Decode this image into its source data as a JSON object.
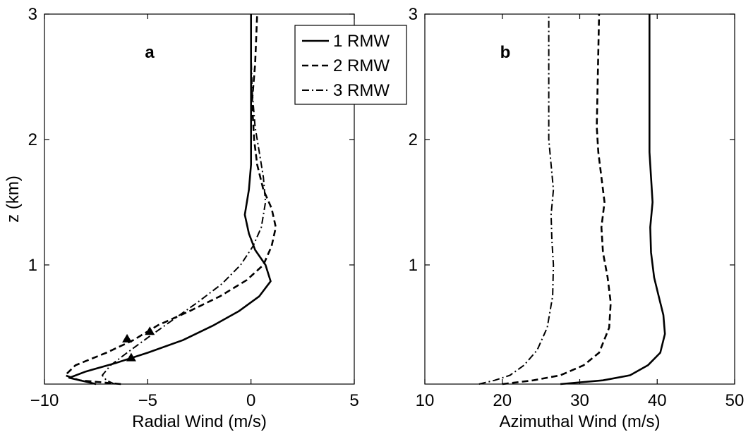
{
  "chart_data": [
    {
      "type": "line",
      "panel_label": "a",
      "xlabel": "Radial Wind (m/s)",
      "ylabel": "z (km)",
      "xlim": [
        -10,
        5
      ],
      "ylim": [
        0.05,
        3
      ],
      "xticks": [
        -10,
        -5,
        0,
        5
      ],
      "yticks": [
        1,
        2,
        3
      ],
      "legend": {
        "placement": "top-right",
        "entries": [
          "1 RMW",
          "2 RMW",
          "3 RMW"
        ]
      },
      "series": [
        {
          "name": "1 RMW",
          "style": "solid",
          "points": [
            [
              -7.5,
              0.05
            ],
            [
              -8.8,
              0.1
            ],
            [
              -8.0,
              0.15
            ],
            [
              -6.5,
              0.22
            ],
            [
              -5.0,
              0.3
            ],
            [
              -3.3,
              0.4
            ],
            [
              -1.8,
              0.52
            ],
            [
              -0.6,
              0.63
            ],
            [
              0.4,
              0.75
            ],
            [
              0.95,
              0.87
            ],
            [
              0.7,
              1.0
            ],
            [
              0.2,
              1.12
            ],
            [
              -0.1,
              1.25
            ],
            [
              -0.3,
              1.4
            ],
            [
              -0.1,
              1.6
            ],
            [
              0.0,
              1.8
            ],
            [
              0.0,
              2.2
            ],
            [
              0.0,
              2.6
            ],
            [
              0.0,
              3.0
            ]
          ],
          "markers": [
            [
              -5.8,
              0.26
            ]
          ]
        },
        {
          "name": "2 RMW",
          "style": "dashed",
          "points": [
            [
              -6.3,
              0.05
            ],
            [
              -8.3,
              0.08
            ],
            [
              -9.0,
              0.12
            ],
            [
              -8.5,
              0.2
            ],
            [
              -7.0,
              0.3
            ],
            [
              -5.7,
              0.4
            ],
            [
              -4.5,
              0.52
            ],
            [
              -3.0,
              0.63
            ],
            [
              -1.5,
              0.75
            ],
            [
              -0.2,
              0.88
            ],
            [
              0.6,
              1.0
            ],
            [
              1.0,
              1.15
            ],
            [
              1.2,
              1.3
            ],
            [
              1.0,
              1.45
            ],
            [
              0.6,
              1.6
            ],
            [
              0.3,
              1.8
            ],
            [
              0.15,
              2.0
            ],
            [
              0.05,
              2.3
            ],
            [
              0.2,
              2.6
            ],
            [
              0.3,
              3.0
            ]
          ],
          "markers": [
            [
              -6.0,
              0.41
            ]
          ]
        },
        {
          "name": "3 RMW",
          "style": "dashdot",
          "points": [
            [
              -6.6,
              0.05
            ],
            [
              -7.0,
              0.08
            ],
            [
              -7.2,
              0.12
            ],
            [
              -6.8,
              0.2
            ],
            [
              -6.0,
              0.3
            ],
            [
              -5.0,
              0.42
            ],
            [
              -3.8,
              0.56
            ],
            [
              -2.6,
              0.7
            ],
            [
              -1.4,
              0.85
            ],
            [
              -0.5,
              1.0
            ],
            [
              0.1,
              1.15
            ],
            [
              0.5,
              1.3
            ],
            [
              0.7,
              1.5
            ],
            [
              0.6,
              1.7
            ],
            [
              0.4,
              1.9
            ],
            [
              0.2,
              2.1
            ],
            [
              0.05,
              2.4
            ],
            [
              0.0,
              2.7
            ],
            [
              0.0,
              3.0
            ]
          ],
          "markers": [
            [
              -4.9,
              0.47
            ]
          ]
        }
      ]
    },
    {
      "type": "line",
      "panel_label": "b",
      "xlabel": "Azimuthal Wind (m/s)",
      "ylabel": "",
      "xlim": [
        10,
        50
      ],
      "ylim": [
        0.05,
        3
      ],
      "xticks": [
        10,
        20,
        30,
        40,
        50
      ],
      "yticks": [
        1,
        2,
        3
      ],
      "series": [
        {
          "name": "1 RMW",
          "style": "solid",
          "points": [
            [
              27.5,
              0.05
            ],
            [
              33.0,
              0.08
            ],
            [
              36.5,
              0.12
            ],
            [
              38.8,
              0.2
            ],
            [
              40.4,
              0.3
            ],
            [
              41.0,
              0.45
            ],
            [
              40.8,
              0.6
            ],
            [
              40.2,
              0.75
            ],
            [
              39.6,
              0.9
            ],
            [
              39.2,
              1.1
            ],
            [
              39.1,
              1.3
            ],
            [
              39.4,
              1.5
            ],
            [
              39.2,
              1.7
            ],
            [
              39.0,
              1.9
            ],
            [
              39.0,
              2.2
            ],
            [
              39.0,
              2.6
            ],
            [
              39.0,
              3.0
            ]
          ]
        },
        {
          "name": "2 RMW",
          "style": "dashed",
          "points": [
            [
              20.0,
              0.05
            ],
            [
              24.0,
              0.08
            ],
            [
              27.5,
              0.12
            ],
            [
              30.5,
              0.2
            ],
            [
              32.5,
              0.3
            ],
            [
              33.8,
              0.5
            ],
            [
              34.0,
              0.7
            ],
            [
              33.6,
              0.9
            ],
            [
              33.0,
              1.1
            ],
            [
              32.8,
              1.3
            ],
            [
              33.2,
              1.5
            ],
            [
              32.8,
              1.7
            ],
            [
              32.4,
              1.9
            ],
            [
              32.2,
              2.1
            ],
            [
              32.3,
              2.4
            ],
            [
              32.4,
              2.7
            ],
            [
              32.5,
              3.0
            ]
          ]
        },
        {
          "name": "3 RMW",
          "style": "dashdot",
          "points": [
            [
              17.0,
              0.05
            ],
            [
              19.0,
              0.08
            ],
            [
              21.0,
              0.12
            ],
            [
              22.8,
              0.2
            ],
            [
              24.5,
              0.32
            ],
            [
              25.8,
              0.5
            ],
            [
              26.5,
              0.75
            ],
            [
              26.6,
              1.0
            ],
            [
              26.4,
              1.2
            ],
            [
              26.3,
              1.4
            ],
            [
              26.6,
              1.6
            ],
            [
              26.3,
              1.8
            ],
            [
              26.0,
              2.0
            ],
            [
              26.0,
              2.3
            ],
            [
              26.0,
              2.6
            ],
            [
              26.0,
              3.0
            ]
          ]
        }
      ]
    }
  ]
}
